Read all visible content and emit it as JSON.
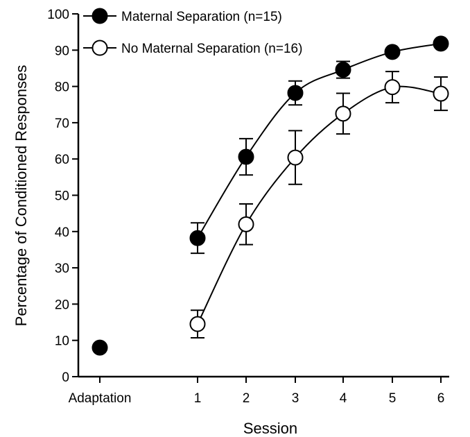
{
  "chart_data": {
    "type": "line",
    "xlabel": "Session",
    "ylabel": "Percentage of Conditioned Responses",
    "ylim": [
      0,
      100
    ],
    "yticks": [
      0,
      10,
      20,
      30,
      40,
      50,
      60,
      70,
      80,
      90,
      100
    ],
    "categories": [
      "Adaptation",
      "1",
      "2",
      "3",
      "4",
      "5",
      "6"
    ],
    "grid": false,
    "legend_position": "top-left",
    "series": [
      {
        "name": "Maternal Separation (n=15)",
        "marker": "filled-circle",
        "color": "#000000",
        "values": [
          8,
          38.2,
          60.6,
          78.2,
          84.6,
          89.5,
          91.8
        ],
        "errors": [
          null,
          4.2,
          5.0,
          3.3,
          2.3,
          null,
          null
        ],
        "connected_from": 1
      },
      {
        "name": "No Maternal Separation (n=16)",
        "marker": "open-circle",
        "color": "#000000",
        "values": [
          null,
          14.5,
          42.0,
          60.4,
          72.5,
          79.8,
          78.0
        ],
        "errors": [
          null,
          3.8,
          5.6,
          7.4,
          5.6,
          4.3,
          4.6
        ],
        "connected_from": 1
      }
    ]
  }
}
